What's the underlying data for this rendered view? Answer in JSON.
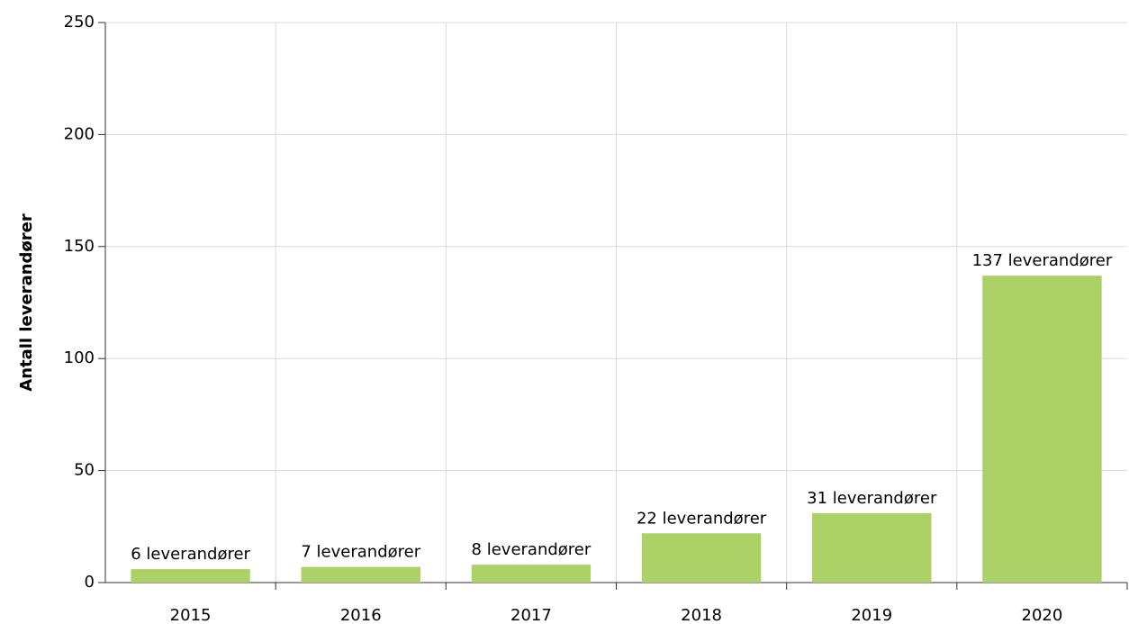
{
  "chart_data": {
    "type": "bar",
    "y_label": "Antall leverandører",
    "categories": [
      "2015",
      "2016",
      "2017",
      "2018",
      "2019",
      "2020"
    ],
    "values": [
      6,
      7,
      8,
      22,
      31,
      137
    ],
    "value_labels": [
      "6 leverandører",
      "7 leverandører",
      "8 leverandører",
      "22 leverandører",
      "31 leverandører",
      "137 leverandører"
    ],
    "color": "#acd267",
    "ylim": [
      0,
      250
    ],
    "yticks": [
      0,
      50,
      100,
      150,
      200,
      250
    ],
    "grid": true
  }
}
